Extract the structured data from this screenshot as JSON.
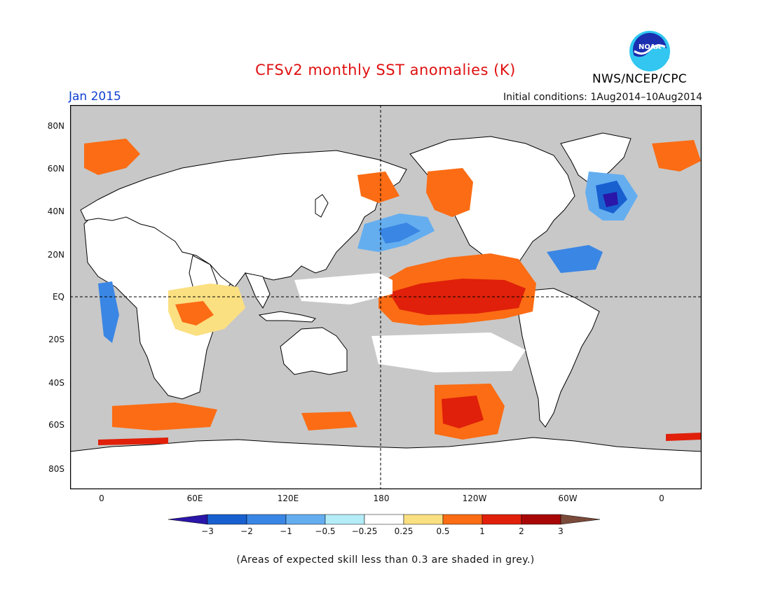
{
  "header": {
    "title": "CFSv2 monthly SST anomalies (K)",
    "month": "Jan 2015",
    "initial_conditions": "Initial conditions: 1Aug2014–10Aug2014",
    "agency": "NWS/NCEP/CPC",
    "logo_text": "NOAA"
  },
  "map": {
    "lat_labels": [
      "80N",
      "60N",
      "40N",
      "20N",
      "EQ",
      "20S",
      "40S",
      "60S",
      "80S"
    ],
    "lon_labels": [
      "0",
      "60E",
      "120E",
      "180",
      "120W",
      "60W",
      "0"
    ],
    "land_color": "#ffffff",
    "masked_color": "#c8c8c8"
  },
  "colorbar": {
    "labels": [
      "−3",
      "−2",
      "−1",
      "−0.5",
      "−0.25",
      "0.25",
      "0.5",
      "1",
      "2",
      "3"
    ],
    "colors": [
      "#2a16a8",
      "#1860d0",
      "#3a86e4",
      "#64aef0",
      "#b4ecf8",
      "#ffffff",
      "#fbe082",
      "#fb6c14",
      "#e0200a",
      "#a80606",
      "#7a4a3a"
    ]
  },
  "footnote": "(Areas of expected skill less than 0.3 are shaded in grey.)"
}
